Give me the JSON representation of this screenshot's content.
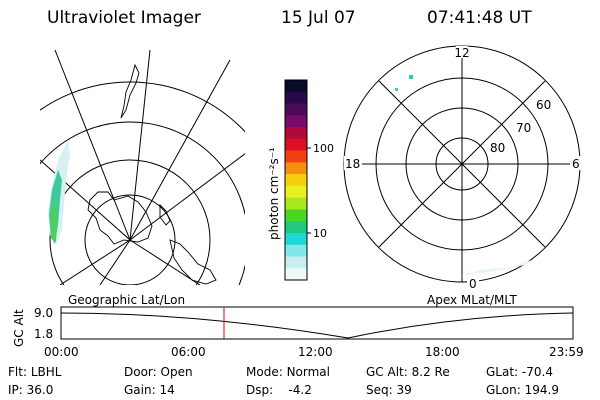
{
  "header": {
    "title": "Ultraviolet Imager",
    "date": "15 Jul 07",
    "time": "07:41:48 UT"
  },
  "colorbar": {
    "unit_label": "photon cm⁻²s⁻¹",
    "ticks": [
      "100",
      "10"
    ],
    "colors": [
      "#0a0a2a",
      "#280a4a",
      "#4a0a5a",
      "#780a6a",
      "#b00a3a",
      "#dc1020",
      "#f04010",
      "#f49010",
      "#f6d010",
      "#e8f020",
      "#a8e820",
      "#48d820",
      "#20c880",
      "#20d8d8",
      "#80e8e8",
      "#c8f0f0",
      "#f0f8f8"
    ]
  },
  "left_panel": {
    "label": "Geographic Lat/Lon"
  },
  "right_panel": {
    "label": "Apex MLat/MLT",
    "mlt_labels": [
      "12",
      "18",
      "6",
      "0"
    ],
    "lat_labels": [
      "60",
      "70",
      "80"
    ]
  },
  "altitude_plot": {
    "ylabel": "GC Alt",
    "yticks": [
      "9.0",
      "1.8"
    ],
    "xticks": [
      "00:00",
      "06:00",
      "12:00",
      "18:00",
      "23:59"
    ],
    "marker_color": "#e00000"
  },
  "footer": {
    "row1": [
      {
        "key": "Flt:",
        "value": "LBHL"
      },
      {
        "key": "Door:",
        "value": "Open"
      },
      {
        "key": "Mode:",
        "value": "Normal"
      },
      {
        "key": "GC Alt:",
        "value": "8.2 Re"
      },
      {
        "key": "GLat:",
        "value": "-70.4"
      }
    ],
    "row2": [
      {
        "key": "IP:",
        "value": "36.0"
      },
      {
        "key": "Gain:",
        "value": "14"
      },
      {
        "key": "Dsp:",
        "value": "-4.2"
      },
      {
        "key": "Seq:",
        "value": "39"
      },
      {
        "key": "GLon:",
        "value": "194.9"
      }
    ]
  }
}
